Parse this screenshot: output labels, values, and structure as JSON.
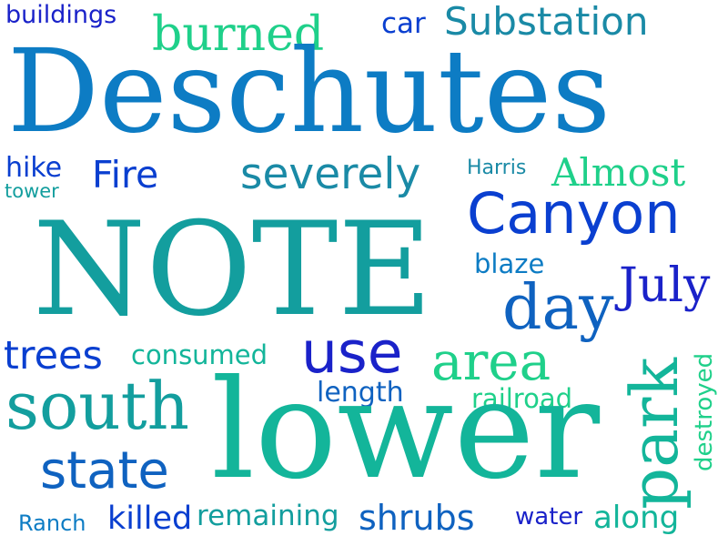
{
  "colors": {
    "navy_blue": "#1a22c9",
    "royal_blue": "#0a3fd0",
    "mid_blue": "#0f62c0",
    "sky_blue": "#0d7cc4",
    "steel_teal": "#1a8aa6",
    "teal": "#139e9e",
    "sea_green": "#13b59a",
    "mint_green": "#1fd08a"
  },
  "words": [
    {
      "text": "buildings",
      "color": "#1a22c9"
    },
    {
      "text": "car",
      "color": "#0a3fd0"
    },
    {
      "text": "Substation",
      "color": "#1a8aa6"
    },
    {
      "text": "burned",
      "color": "#1fd08a"
    },
    {
      "text": "Deschutes",
      "color": "#0d7cc4"
    },
    {
      "text": "hike",
      "color": "#0a3fd0"
    },
    {
      "text": "tower",
      "color": "#139e9e"
    },
    {
      "text": "Fire",
      "color": "#0a3fd0"
    },
    {
      "text": "severely",
      "color": "#1a8aa6"
    },
    {
      "text": "Harris",
      "color": "#1a8aa6"
    },
    {
      "text": "Almost",
      "color": "#1fd08a"
    },
    {
      "text": "Canyon",
      "color": "#0a3fd0"
    },
    {
      "text": "NOTE",
      "color": "#139e9e"
    },
    {
      "text": "blaze",
      "color": "#0d7cc4"
    },
    {
      "text": "July",
      "color": "#1a22c9"
    },
    {
      "text": "day",
      "color": "#0f62c0"
    },
    {
      "text": "trees",
      "color": "#0a3fd0"
    },
    {
      "text": "consumed",
      "color": "#13b59a"
    },
    {
      "text": "use",
      "color": "#1a22c9"
    },
    {
      "text": "area",
      "color": "#1fd08a"
    },
    {
      "text": "length",
      "color": "#0f62c0"
    },
    {
      "text": "railroad",
      "color": "#1fd08a"
    },
    {
      "text": "south",
      "color": "#139e9e"
    },
    {
      "text": "lower",
      "color": "#13b59a"
    },
    {
      "text": "park",
      "color": "#13b59a"
    },
    {
      "text": "destroyed",
      "color": "#1fd08a"
    },
    {
      "text": "state",
      "color": "#0f62c0"
    },
    {
      "text": "Ranch",
      "color": "#0d7cc4"
    },
    {
      "text": "killed",
      "color": "#0a3fd0"
    },
    {
      "text": "remaining",
      "color": "#139e9e"
    },
    {
      "text": "shrubs",
      "color": "#0f62c0"
    },
    {
      "text": "water",
      "color": "#1a22c9"
    },
    {
      "text": "along",
      "color": "#13b59a"
    }
  ]
}
